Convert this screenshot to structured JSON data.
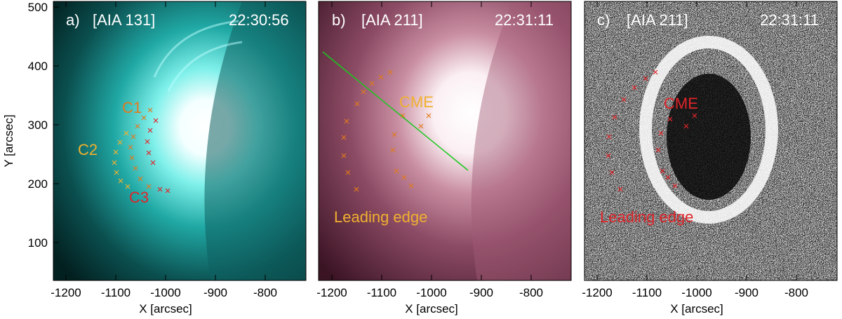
{
  "figure": {
    "axis_xlabel": "X [arcsec]",
    "axis_ylabel": "Y [arcsec]",
    "x_ticks": [
      "-1200",
      "-1100",
      "-1000",
      "-900",
      "-800"
    ],
    "y_ticks": [
      "500",
      "400",
      "300",
      "200",
      "100"
    ],
    "colors": {
      "aia131": "#19c9c4",
      "aia211": "#8a4a62",
      "orange_marker": "#e07a1e",
      "yellow_marker": "#f0b030",
      "red_marker": "#e0242a",
      "green_line": "#19c81e"
    }
  },
  "panels": [
    {
      "label": "a)",
      "instrument": "[AIA 131]",
      "time": "22:30:56",
      "annotations": [
        "C1",
        "C2",
        "C3"
      ]
    },
    {
      "label": "b)",
      "instrument": "[AIA 211]",
      "time": "22:31:11",
      "annotations": [
        "CME",
        "Leading edge"
      ]
    },
    {
      "label": "c)",
      "instrument": "[AIA 211]",
      "time": "22:31:11",
      "annotations": [
        "CME",
        "Leading edge"
      ]
    }
  ]
}
